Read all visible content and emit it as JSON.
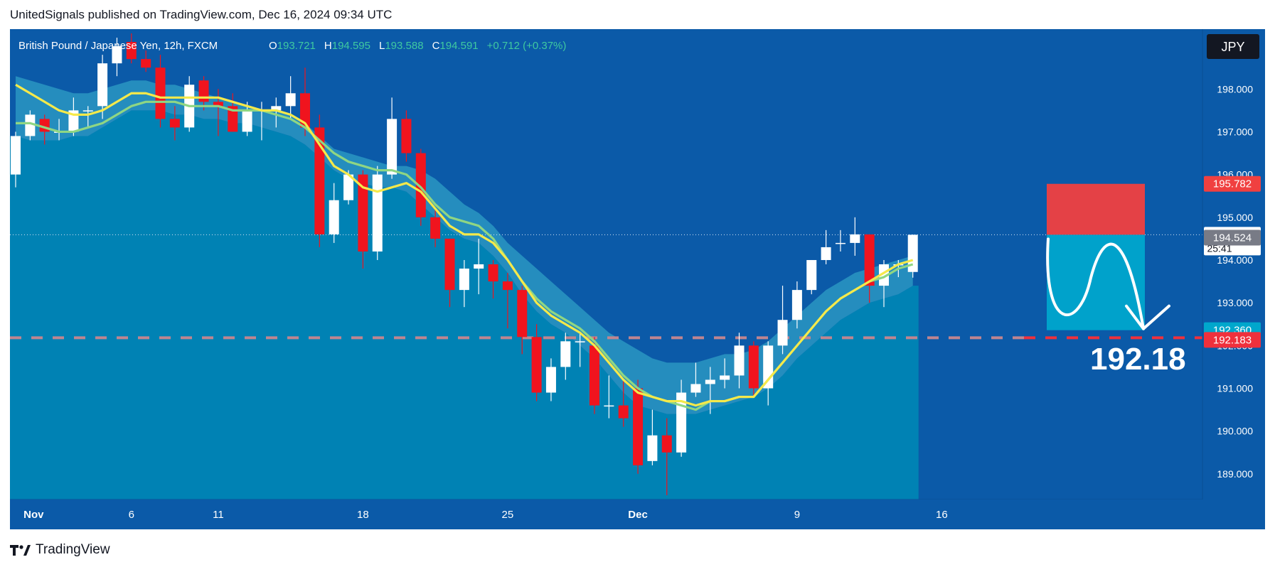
{
  "header": {
    "text": "UnitedSignals published on TradingView.com, Dec 16, 2024 09:34 UTC"
  },
  "footer": {
    "brand": "TradingView",
    "logo_icon": "tradingview-logo-icon"
  },
  "legend": {
    "title": "British Pound / Japanese Yen, 12h, FXCM",
    "o_label": "O",
    "o_value": "193.721",
    "h_label": "H",
    "h_value": "194.595",
    "l_label": "L",
    "l_value": "193.588",
    "c_label": "C",
    "c_value": "194.591",
    "change": "+0.712 (+0.37%)"
  },
  "currency_badge": "JPY",
  "colors": {
    "background": "#0b5aa8",
    "plot_fill": "#0082b4",
    "band": "#2a97c2",
    "up": "#ffffff",
    "down": "#f0141e",
    "ema_fast": "#f5e94a",
    "ema_slow": "#8fd683",
    "stop_zone": "#f04040",
    "target_zone": "#00a7cc",
    "target_line": "#f0303c",
    "price_line": "#ffffff"
  },
  "chart_data": {
    "type": "candlestick",
    "symbol": "GBPJPY",
    "timeframe": "12h",
    "ylim": [
      188.4,
      199.4
    ],
    "y_ticks": [
      "189.000",
      "190.000",
      "191.000",
      "192.000",
      "193.000",
      "194.000",
      "195.000",
      "196.000",
      "197.000",
      "198.000"
    ],
    "x_ticks": [
      {
        "label": "Nov",
        "index": 1
      },
      {
        "label": "6",
        "index": 8
      },
      {
        "label": "11",
        "index": 14
      },
      {
        "label": "18",
        "index": 24
      },
      {
        "label": "25",
        "index": 34
      },
      {
        "label": "Dec",
        "index": 43
      },
      {
        "label": "9",
        "index": 54
      },
      {
        "label": "16",
        "index": 64
      }
    ],
    "candles": [
      {
        "o": 196.0,
        "h": 197.0,
        "l": 195.7,
        "c": 196.9
      },
      {
        "o": 196.9,
        "h": 197.5,
        "l": 196.8,
        "c": 197.4
      },
      {
        "o": 197.3,
        "h": 197.4,
        "l": 196.7,
        "c": 197.0
      },
      {
        "o": 197.0,
        "h": 197.3,
        "l": 196.8,
        "c": 197.0
      },
      {
        "o": 197.0,
        "h": 197.8,
        "l": 196.9,
        "c": 197.5
      },
      {
        "o": 197.5,
        "h": 197.6,
        "l": 197.1,
        "c": 197.5
      },
      {
        "o": 197.6,
        "h": 198.8,
        "l": 197.3,
        "c": 198.6
      },
      {
        "o": 198.6,
        "h": 199.2,
        "l": 198.3,
        "c": 199.0
      },
      {
        "o": 199.1,
        "h": 199.3,
        "l": 198.6,
        "c": 198.7
      },
      {
        "o": 198.7,
        "h": 198.9,
        "l": 198.4,
        "c": 198.5
      },
      {
        "o": 198.5,
        "h": 198.8,
        "l": 197.1,
        "c": 197.3
      },
      {
        "o": 197.3,
        "h": 197.6,
        "l": 196.8,
        "c": 197.1
      },
      {
        "o": 197.1,
        "h": 198.3,
        "l": 197.0,
        "c": 198.1
      },
      {
        "o": 198.2,
        "h": 198.3,
        "l": 197.5,
        "c": 197.7
      },
      {
        "o": 197.7,
        "h": 198.0,
        "l": 196.9,
        "c": 197.6
      },
      {
        "o": 197.6,
        "h": 197.9,
        "l": 197.0,
        "c": 197.0
      },
      {
        "o": 197.0,
        "h": 197.7,
        "l": 196.9,
        "c": 197.5
      },
      {
        "o": 197.5,
        "h": 197.7,
        "l": 196.8,
        "c": 197.5
      },
      {
        "o": 197.5,
        "h": 197.8,
        "l": 197.1,
        "c": 197.6
      },
      {
        "o": 197.6,
        "h": 198.3,
        "l": 197.3,
        "c": 197.9
      },
      {
        "o": 197.9,
        "h": 198.5,
        "l": 196.9,
        "c": 197.1
      },
      {
        "o": 197.1,
        "h": 197.4,
        "l": 194.3,
        "c": 194.6
      },
      {
        "o": 194.6,
        "h": 195.8,
        "l": 194.4,
        "c": 195.4
      },
      {
        "o": 195.4,
        "h": 196.1,
        "l": 195.3,
        "c": 196.0
      },
      {
        "o": 196.0,
        "h": 196.1,
        "l": 193.8,
        "c": 194.2
      },
      {
        "o": 194.2,
        "h": 196.2,
        "l": 194.0,
        "c": 196.0
      },
      {
        "o": 196.0,
        "h": 197.8,
        "l": 195.9,
        "c": 197.3
      },
      {
        "o": 197.3,
        "h": 197.5,
        "l": 196.3,
        "c": 196.5
      },
      {
        "o": 196.5,
        "h": 196.6,
        "l": 194.8,
        "c": 195.0
      },
      {
        "o": 195.0,
        "h": 195.2,
        "l": 194.3,
        "c": 194.5
      },
      {
        "o": 194.5,
        "h": 194.5,
        "l": 192.9,
        "c": 193.3
      },
      {
        "o": 193.3,
        "h": 194.0,
        "l": 192.9,
        "c": 193.8
      },
      {
        "o": 193.8,
        "h": 194.5,
        "l": 193.2,
        "c": 193.9
      },
      {
        "o": 193.9,
        "h": 194.0,
        "l": 193.1,
        "c": 193.5
      },
      {
        "o": 193.5,
        "h": 193.7,
        "l": 192.4,
        "c": 193.3
      },
      {
        "o": 193.3,
        "h": 193.4,
        "l": 191.8,
        "c": 192.2
      },
      {
        "o": 192.2,
        "h": 192.5,
        "l": 190.7,
        "c": 190.9
      },
      {
        "o": 190.9,
        "h": 191.7,
        "l": 190.7,
        "c": 191.5
      },
      {
        "o": 191.5,
        "h": 192.3,
        "l": 191.2,
        "c": 192.1
      },
      {
        "o": 192.1,
        "h": 192.3,
        "l": 191.5,
        "c": 192.1
      },
      {
        "o": 192.0,
        "h": 192.2,
        "l": 190.4,
        "c": 190.6
      },
      {
        "o": 190.6,
        "h": 191.3,
        "l": 190.3,
        "c": 190.6
      },
      {
        "o": 190.6,
        "h": 191.2,
        "l": 190.1,
        "c": 190.3
      },
      {
        "o": 191.0,
        "h": 191.2,
        "l": 189.0,
        "c": 189.2
      },
      {
        "o": 189.3,
        "h": 190.5,
        "l": 189.2,
        "c": 189.9
      },
      {
        "o": 189.9,
        "h": 190.3,
        "l": 188.5,
        "c": 189.5
      },
      {
        "o": 189.5,
        "h": 191.2,
        "l": 189.4,
        "c": 190.9
      },
      {
        "o": 190.9,
        "h": 191.6,
        "l": 190.8,
        "c": 191.1
      },
      {
        "o": 191.1,
        "h": 191.5,
        "l": 190.4,
        "c": 191.2
      },
      {
        "o": 191.2,
        "h": 191.7,
        "l": 191.0,
        "c": 191.3
      },
      {
        "o": 191.3,
        "h": 192.3,
        "l": 191.0,
        "c": 192.0
      },
      {
        "o": 192.0,
        "h": 192.1,
        "l": 190.8,
        "c": 191.0
      },
      {
        "o": 191.0,
        "h": 192.1,
        "l": 190.6,
        "c": 192.0
      },
      {
        "o": 192.0,
        "h": 193.4,
        "l": 191.8,
        "c": 192.6
      },
      {
        "o": 192.6,
        "h": 193.5,
        "l": 192.4,
        "c": 193.3
      },
      {
        "o": 193.3,
        "h": 194.0,
        "l": 193.2,
        "c": 194.0
      },
      {
        "o": 194.0,
        "h": 194.7,
        "l": 193.9,
        "c": 194.3
      },
      {
        "o": 194.4,
        "h": 194.7,
        "l": 194.2,
        "c": 194.4
      },
      {
        "o": 194.4,
        "h": 195.0,
        "l": 194.1,
        "c": 194.6
      },
      {
        "o": 194.6,
        "h": 194.6,
        "l": 193.0,
        "c": 193.4
      },
      {
        "o": 193.4,
        "h": 194.0,
        "l": 192.9,
        "c": 193.9
      },
      {
        "o": 193.9,
        "h": 194.0,
        "l": 193.6,
        "c": 193.9
      },
      {
        "o": 193.721,
        "h": 194.595,
        "l": 193.588,
        "c": 194.591
      }
    ],
    "ema_fast": [
      198.1,
      197.9,
      197.7,
      197.5,
      197.4,
      197.4,
      197.5,
      197.7,
      197.9,
      197.9,
      197.8,
      197.8,
      197.8,
      197.8,
      197.8,
      197.7,
      197.6,
      197.5,
      197.5,
      197.4,
      197.2,
      196.7,
      196.2,
      196.0,
      195.7,
      195.6,
      195.7,
      195.8,
      195.6,
      195.2,
      194.8,
      194.6,
      194.6,
      194.4,
      194.0,
      193.5,
      193.0,
      192.7,
      192.5,
      192.3,
      192.0,
      191.6,
      191.2,
      190.9,
      190.8,
      190.7,
      190.7,
      190.6,
      190.7,
      190.7,
      190.8,
      190.8,
      191.2,
      191.6,
      192.0,
      192.4,
      192.8,
      193.1,
      193.3,
      193.5,
      193.7,
      193.9,
      194.0
    ],
    "ema_slow": [
      197.2,
      197.2,
      197.1,
      197.0,
      197.0,
      197.1,
      197.2,
      197.4,
      197.6,
      197.7,
      197.7,
      197.7,
      197.6,
      197.6,
      197.6,
      197.5,
      197.5,
      197.5,
      197.4,
      197.3,
      197.1,
      196.8,
      196.5,
      196.3,
      196.2,
      196.1,
      196.1,
      196.0,
      195.7,
      195.3,
      195.0,
      194.9,
      194.8,
      194.5,
      194.0,
      193.5,
      193.1,
      192.8,
      192.6,
      192.4,
      192.1,
      191.7,
      191.3,
      191.0,
      190.8,
      190.7,
      190.6,
      190.5,
      190.7,
      190.7,
      190.8,
      190.8,
      191.2,
      191.6,
      192.0,
      192.4,
      192.8,
      193.1,
      193.3,
      193.5,
      193.6,
      193.8,
      193.9
    ],
    "band_upper": [
      198.3,
      198.2,
      198.1,
      198.0,
      197.9,
      197.9,
      198.0,
      198.1,
      198.2,
      198.2,
      198.1,
      198.1,
      198.0,
      197.9,
      197.8,
      197.7,
      197.6,
      197.5,
      197.5,
      197.4,
      197.2,
      196.9,
      196.6,
      196.5,
      196.4,
      196.3,
      196.2,
      196.2,
      196.1,
      195.9,
      195.6,
      195.3,
      195.1,
      194.8,
      194.4,
      194.1,
      193.8,
      193.5,
      193.2,
      192.9,
      192.6,
      192.3,
      192.1,
      191.9,
      191.7,
      191.6,
      191.6,
      191.6,
      191.7,
      191.8,
      191.8,
      191.9,
      192.1,
      192.4,
      192.7,
      193.0,
      193.3,
      193.5,
      193.7,
      193.8,
      193.9,
      194.0,
      194.1
    ],
    "band_lower": [
      196.9,
      196.8,
      196.8,
      196.8,
      196.9,
      196.9,
      197.1,
      197.3,
      197.5,
      197.5,
      197.5,
      197.4,
      197.4,
      197.3,
      197.3,
      197.2,
      197.2,
      197.1,
      197.0,
      196.9,
      196.7,
      196.4,
      196.1,
      195.9,
      195.8,
      195.7,
      195.7,
      195.6,
      195.3,
      195.0,
      194.7,
      194.5,
      194.4,
      194.1,
      193.7,
      193.2,
      192.8,
      192.5,
      192.3,
      192.0,
      191.7,
      191.3,
      190.9,
      190.6,
      190.5,
      190.4,
      190.4,
      190.4,
      190.5,
      190.6,
      190.7,
      190.8,
      191.0,
      191.3,
      191.7,
      192.0,
      192.3,
      192.6,
      192.8,
      193.0,
      193.1,
      193.2,
      193.4
    ],
    "last_price": 194.591,
    "last_price_label": "194.591",
    "countdown": "25:41",
    "ema_price_label": "194.524",
    "ema_price_value": 194.524,
    "stop_label": "195.782",
    "stop_value": 195.782,
    "target_label": "192.360",
    "target_value": 192.36,
    "target_line_label": "192.183",
    "target_line_value": 192.183,
    "target_annotation": "192.18",
    "entry_value": 194.591
  }
}
